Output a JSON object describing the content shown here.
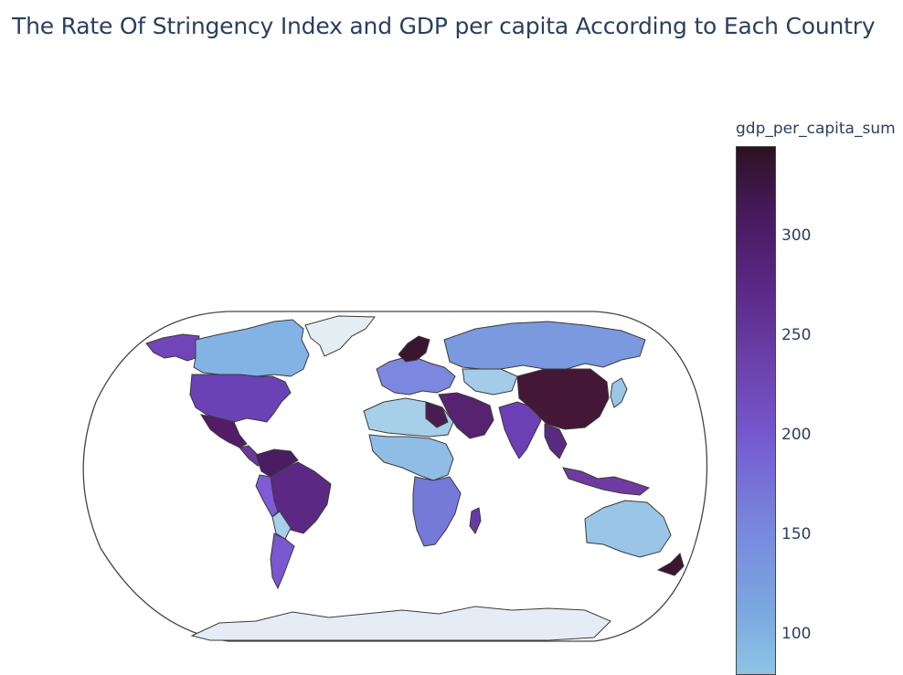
{
  "title": "The Rate Of Stringency Index and GDP per capita According to Each Country",
  "colorbar": {
    "title": "gdp_per_capita_sum",
    "ticks": [
      "300",
      "250",
      "200",
      "150",
      "100"
    ]
  },
  "colors": {
    "text": "#2a3f5f",
    "border": "#444444",
    "land_outline": "#3a3a3a",
    "low": "#8ec3e6",
    "mid": "#7559cf",
    "high": "#2c1221",
    "antarctica": "#e6ecf5",
    "greenland": "#e5eef2"
  }
}
